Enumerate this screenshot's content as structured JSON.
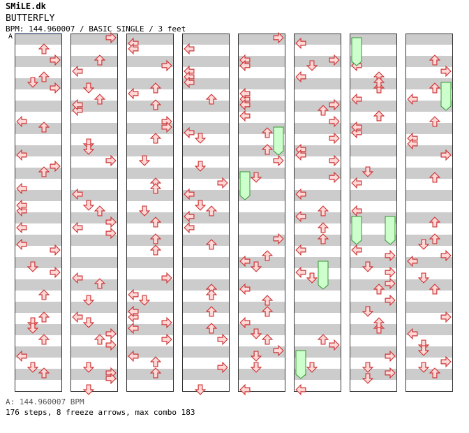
{
  "site_name": "SMiLE.dk",
  "song_title": "BUTTERFLY",
  "chart_info": "BPM: 144.960007 / BASIC SINGLE / 3 feet",
  "marker_label": "A",
  "footer": {
    "bpm_line": "A: 144.960007 BPM",
    "stats_line": "176 steps, 8 freeze arrows, max combo 183"
  },
  "colors": {
    "stripe": "#cccccc",
    "arrow_fill": "#ffd8d8",
    "arrow_stroke": "#cc3333",
    "freeze_fill": "#ccffcc",
    "freeze_stroke": "#339933",
    "marker_line": "#6699ff"
  },
  "legend": {
    "directions": [
      "left",
      "down",
      "up",
      "right"
    ]
  },
  "chart_data": {
    "type": "step-chart",
    "columns": 8,
    "measures_per_column": 8,
    "steps": 176,
    "freeze_arrows": 8,
    "max_combo": 183,
    "notes": [
      [
        [
          1,
          "left"
        ],
        [
          4,
          "up"
        ],
        [
          8,
          "left"
        ],
        [
          9,
          "down"
        ],
        [
          11,
          "down"
        ],
        [
          14,
          "left"
        ],
        [
          16,
          "down"
        ],
        [
          19,
          "up"
        ]
      ],
      [
        [
          0,
          "left"
        ],
        [
          2,
          "right"
        ],
        [
          5,
          "down"
        ],
        [
          7,
          "right"
        ],
        [
          9,
          "left"
        ],
        [
          12,
          "up"
        ],
        [
          15,
          "down"
        ],
        [
          18,
          "right"
        ]
      ],
      [
        [
          1,
          "down"
        ],
        [
          3,
          "up"
        ],
        [
          6,
          "right"
        ],
        [
          10,
          "left"
        ],
        [
          12,
          "right"
        ],
        [
          17,
          "down"
        ],
        [
          20,
          "up"
        ],
        [
          22,
          "left"
        ]
      ]
    ],
    "freezes": [
      {
        "column": 4,
        "measure": 2,
        "lane": "right"
      },
      {
        "column": 4,
        "measure": 3,
        "lane": "left"
      },
      {
        "column": 5,
        "measure": 5,
        "lane": "up"
      },
      {
        "column": 5,
        "measure": 7,
        "lane": "left"
      },
      {
        "column": 6,
        "measure": 0,
        "lane": "left"
      },
      {
        "column": 6,
        "measure": 4,
        "lane": "left"
      },
      {
        "column": 6,
        "measure": 4,
        "lane": "right"
      },
      {
        "column": 7,
        "measure": 1,
        "lane": "right"
      }
    ]
  }
}
